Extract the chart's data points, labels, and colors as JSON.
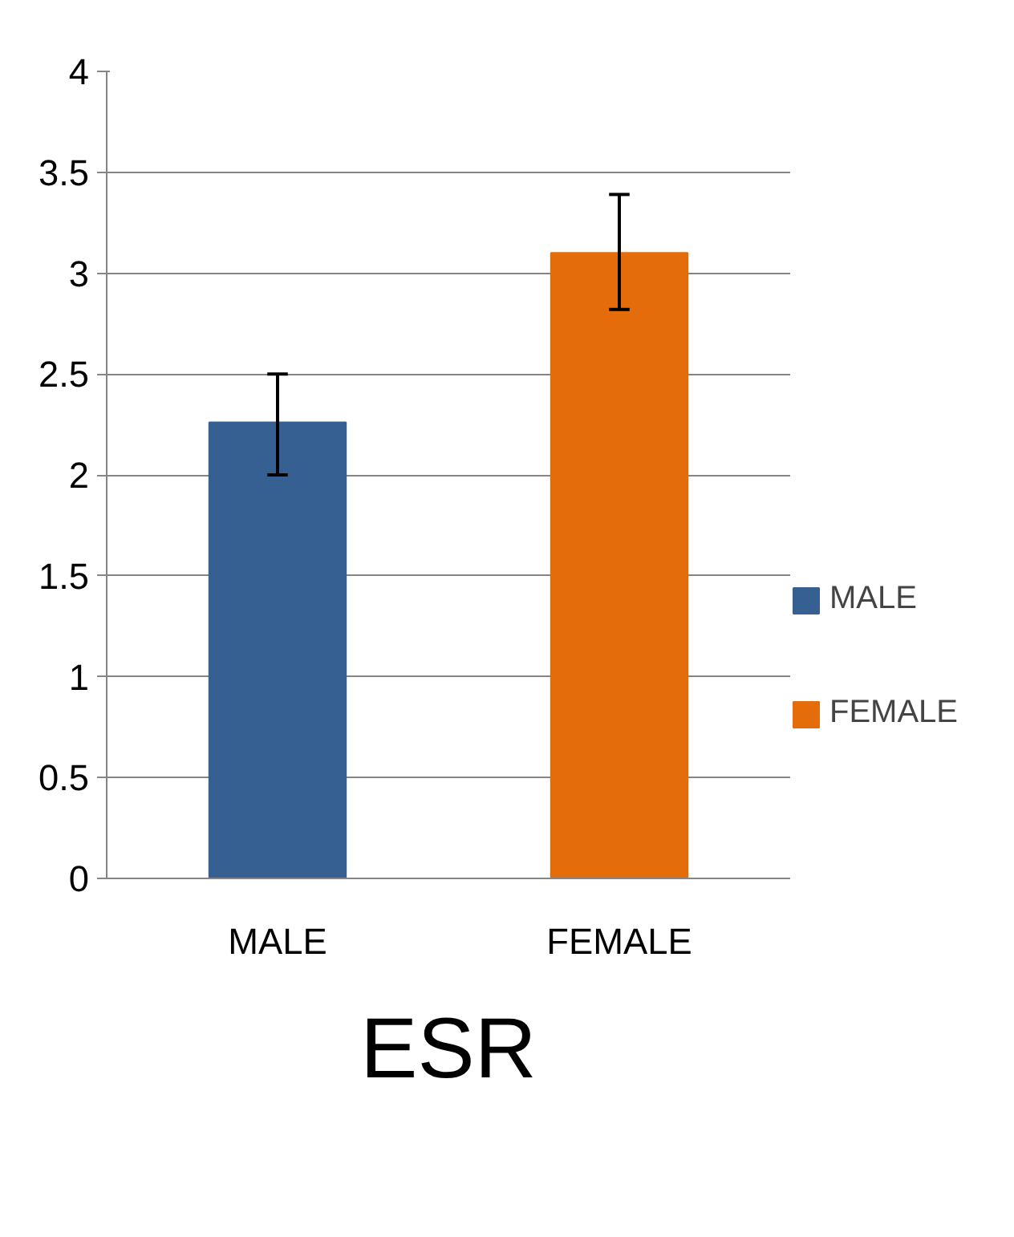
{
  "chart_data": {
    "type": "bar",
    "title": "ESR",
    "categories": [
      "MALE",
      "FEMALE"
    ],
    "series": [
      {
        "name": "MALE",
        "color": "#376092",
        "values": [
          2.26,
          null
        ],
        "errors": [
          [
            2.0,
            2.5
          ],
          null
        ]
      },
      {
        "name": "FEMALE",
        "color": "#e46c0a",
        "values": [
          null,
          3.1
        ],
        "errors": [
          null,
          [
            2.82,
            3.39
          ]
        ]
      }
    ],
    "ylim": [
      0,
      4
    ],
    "yticks": [
      0,
      {
        "value": 0.5,
        "label": "0.5"
      },
      1,
      {
        "value": 1.5,
        "label": "1.5"
      },
      2,
      {
        "value": 2.5,
        "label": "2.5"
      },
      3,
      {
        "value": 3.5,
        "label": "3.5"
      },
      4
    ],
    "grid": "y",
    "legend": "right"
  }
}
